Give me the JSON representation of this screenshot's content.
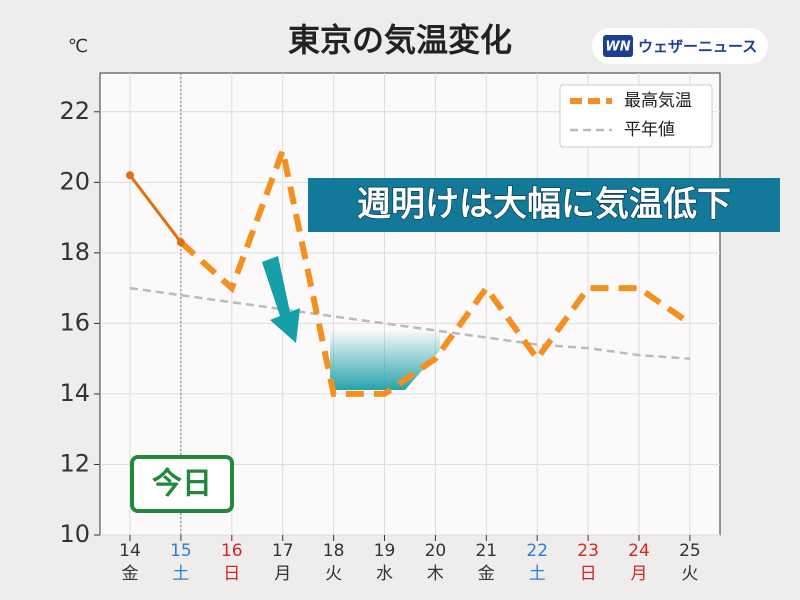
{
  "chart_data": {
    "type": "line",
    "title": "東京の気温変化",
    "unit": "℃",
    "logo": "ウェザーニュース",
    "categories": [
      "14",
      "15",
      "16",
      "17",
      "18",
      "19",
      "20",
      "21",
      "22",
      "23",
      "24",
      "25"
    ],
    "weekdays": [
      "金",
      "土",
      "日",
      "月",
      "火",
      "水",
      "木",
      "金",
      "土",
      "日",
      "月",
      "火"
    ],
    "category_colors": [
      "#333333",
      "#2a7fd0",
      "#d02828",
      "#333333",
      "#333333",
      "#333333",
      "#333333",
      "#333333",
      "#2a7fd0",
      "#d02828",
      "#d02828",
      "#333333"
    ],
    "series": [
      {
        "name": "最高気温",
        "color": "#f39020",
        "values": [
          20.2,
          18.3,
          17.0,
          20.9,
          14.0,
          14.0,
          15.0,
          17.0,
          15.0,
          17.0,
          17.0,
          16.0
        ]
      },
      {
        "name": "平年値",
        "color": "#bbbbbb",
        "values": [
          17.0,
          16.8,
          16.6,
          16.4,
          16.2,
          16.0,
          15.8,
          15.6,
          15.4,
          15.3,
          15.1,
          15.0
        ]
      }
    ],
    "today_index": 1,
    "today_label": "今日",
    "annotation": "週明けは大幅に気温低下",
    "ylim": [
      10,
      23.1
    ],
    "yticks": [
      10,
      12,
      14,
      16,
      18,
      20,
      22
    ],
    "grid": true,
    "legend": "upper right"
  }
}
